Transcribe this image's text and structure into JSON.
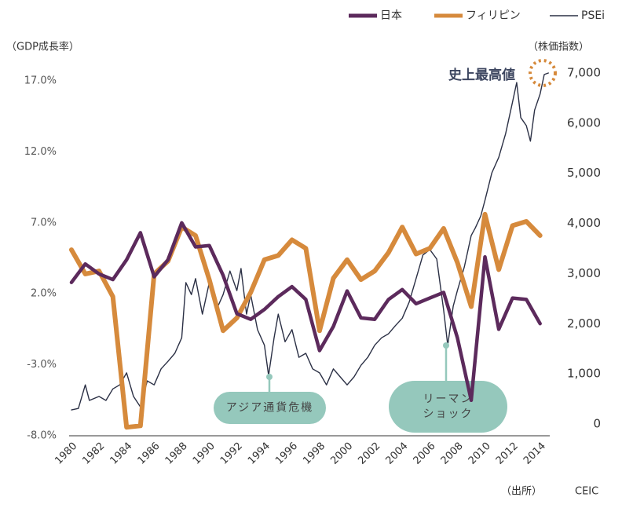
{
  "chart_data": {
    "type": "line",
    "x": [
      1980,
      1981,
      1982,
      1983,
      1984,
      1985,
      1986,
      1987,
      1988,
      1989,
      1990,
      1991,
      1992,
      1993,
      1994,
      1995,
      1996,
      1997,
      1998,
      1999,
      2000,
      2001,
      2002,
      2003,
      2004,
      2005,
      2006,
      2007,
      2008,
      2009,
      2010,
      2011,
      2012,
      2013,
      2014
    ],
    "xlim": [
      1980,
      2014.7
    ],
    "xticks": [
      1980,
      1982,
      1984,
      1986,
      1988,
      1990,
      1992,
      1994,
      1996,
      1998,
      2000,
      2002,
      2004,
      2006,
      2008,
      2010,
      2012,
      2014
    ],
    "ylabel": "（GDP成長率）",
    "y2label": "（株価指数）",
    "ylim": [
      -8,
      17.55
    ],
    "yticks": [
      {
        "value": 17,
        "label": "17.0%"
      },
      {
        "value": 12,
        "label": "12.0%"
      },
      {
        "value": 7,
        "label": "7.0%"
      },
      {
        "value": 2,
        "label": "2.0%"
      },
      {
        "value": -3,
        "label": "-3.0%"
      },
      {
        "value": -8,
        "label": "-8.0%"
      }
    ],
    "y2lim": [
      -235,
      7000
    ],
    "y2ticks": [
      {
        "value": 7000,
        "label": "7,000"
      },
      {
        "value": 6000,
        "label": "6,000"
      },
      {
        "value": 5000,
        "label": "5,000"
      },
      {
        "value": 4000,
        "label": "4,000"
      },
      {
        "value": 3000,
        "label": "3,000"
      },
      {
        "value": 2000,
        "label": "2,000"
      },
      {
        "value": 1000,
        "label": "1,000"
      },
      0
    ],
    "series": [
      {
        "name": "日本",
        "color": "#5c2a5c",
        "values": [
          2.8,
          4.1,
          3.4,
          3.0,
          4.4,
          6.3,
          3.2,
          4.4,
          7.0,
          5.3,
          5.4,
          3.3,
          0.6,
          0.2,
          0.9,
          1.8,
          2.5,
          1.6,
          -2.0,
          -0.3,
          2.2,
          0.3,
          0.2,
          1.6,
          2.3,
          1.3,
          1.7,
          2.1,
          -1.1,
          -5.5,
          4.6,
          -0.5,
          1.7,
          1.6,
          -0.1
        ]
      },
      {
        "name": "フィリピン",
        "color": "#d68a3c",
        "values": [
          5.1,
          3.4,
          3.6,
          1.8,
          -7.4,
          -7.3,
          3.4,
          4.3,
          6.7,
          6.1,
          3.0,
          -0.6,
          0.3,
          2.1,
          4.4,
          4.7,
          5.8,
          5.2,
          -0.6,
          3.1,
          4.4,
          3.0,
          3.6,
          4.9,
          6.7,
          4.8,
          5.2,
          6.6,
          4.2,
          1.1,
          7.6,
          3.7,
          6.8,
          7.1,
          6.1
        ]
      },
      {
        "name": "PSEi",
        "color": "#2b3045",
        "axis": "y2",
        "x": [
          1980.0,
          1980.5,
          1981.0,
          1981.3,
          1982.0,
          1982.5,
          1983.0,
          1983.5,
          1984.0,
          1984.5,
          1985.0,
          1985.5,
          1986.0,
          1986.5,
          1987.0,
          1987.5,
          1988.0,
          1988.3,
          1988.7,
          1989.0,
          1989.5,
          1990.0,
          1990.5,
          1991.0,
          1991.5,
          1992.0,
          1992.3,
          1992.7,
          1993.0,
          1993.5,
          1994.0,
          1994.3,
          1994.7,
          1995.0,
          1995.5,
          1996.0,
          1996.5,
          1997.0,
          1997.5,
          1998.0,
          1998.5,
          1999.0,
          1999.5,
          2000.0,
          2000.5,
          2001.0,
          2001.5,
          2002.0,
          2002.5,
          2003.0,
          2003.5,
          2004.0,
          2004.5,
          2005.0,
          2005.5,
          2006.0,
          2006.5,
          2007.0,
          2007.3,
          2007.7,
          2008.0,
          2008.5,
          2009.0,
          2009.3,
          2009.7,
          2010.0,
          2010.5,
          2011.0,
          2011.5,
          2012.0,
          2012.3,
          2012.6,
          2013.0,
          2013.3,
          2013.6,
          2014.0,
          2014.3,
          2014.6
        ],
        "values": [
          280,
          310,
          780,
          470,
          550,
          470,
          700,
          780,
          1020,
          550,
          340,
          860,
          780,
          1100,
          1250,
          1410,
          1720,
          2820,
          2580,
          2900,
          2190,
          2820,
          2270,
          2580,
          3050,
          2660,
          3100,
          2190,
          2580,
          1880,
          1570,
          970,
          1720,
          2190,
          1640,
          1880,
          1330,
          1410,
          1100,
          1020,
          780,
          1100,
          940,
          780,
          940,
          1170,
          1330,
          1570,
          1720,
          1800,
          1960,
          2110,
          2430,
          2900,
          3370,
          3480,
          3290,
          2270,
          1570,
          2350,
          2660,
          3130,
          3760,
          3910,
          4150,
          4460,
          5010,
          5320,
          5790,
          6420,
          6810,
          6110,
          5950,
          5640,
          6260,
          6580,
          6970,
          7000
        ]
      }
    ],
    "annotations": [
      "史上最高値",
      "アジア通貨危機",
      "リーマン",
      "ショック"
    ],
    "source": [
      "（出所）",
      "CEIC"
    ]
  }
}
